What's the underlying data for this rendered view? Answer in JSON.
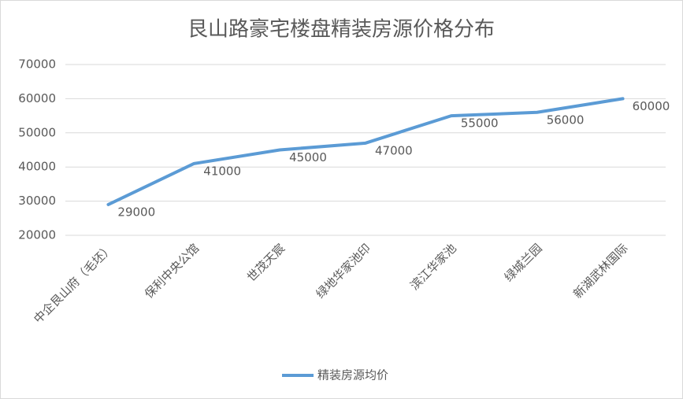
{
  "chart_data": {
    "type": "line",
    "title": "艮山路豪宅楼盘精装房源价格分布",
    "categories": [
      "中企艮山府（毛坯）",
      "保利中央公馆",
      "世茂天宸",
      "绿地华家池印",
      "滨江华家池",
      "绿城兰园",
      "新湖武林国际"
    ],
    "series": [
      {
        "name": "精装房源均价",
        "color": "#5b9bd5",
        "values": [
          29000,
          41000,
          45000,
          47000,
          55000,
          56000,
          60000
        ]
      }
    ],
    "ylim": [
      20000,
      70000
    ],
    "yticks": [
      20000,
      30000,
      40000,
      50000,
      60000,
      70000
    ],
    "grid": true,
    "legend": "bottom"
  }
}
